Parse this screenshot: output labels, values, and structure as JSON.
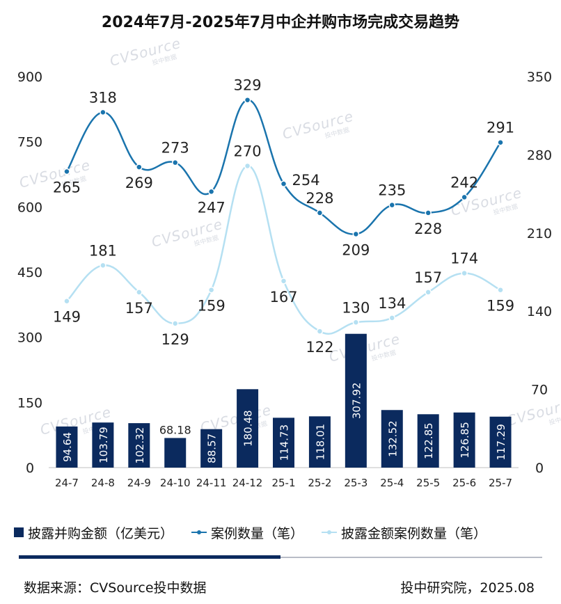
{
  "title": "2024年7月-2025年7月中企并购市场完成交易趋势",
  "watermark": "CVSource",
  "watermark_sub": "投中数据",
  "colors": {
    "bar": "#0b2a5e",
    "cases_line": "#1a74ad",
    "disclosed_line": "#b5e0f2",
    "bar_label": "#ffffff",
    "watermark": "#d5d9e0"
  },
  "legend": [
    {
      "label": "披露并购金额（亿美元）",
      "kind": "bar"
    },
    {
      "label": "案例数量（笔）",
      "kind": "line-dark"
    },
    {
      "label": "披露金额案例数量（笔）",
      "kind": "line-light"
    }
  ],
  "footer": {
    "source": "数据来源：CVSource投中数据",
    "org_date": "投中研究院，2025.08"
  },
  "chart_data": {
    "type": "bar",
    "categories": [
      "24-7",
      "24-8",
      "24-9",
      "24-10",
      "24-11",
      "24-12",
      "25-1",
      "25-2",
      "25-3",
      "25-4",
      "25-5",
      "25-6",
      "25-7"
    ],
    "y_left": {
      "ticks": [
        "0",
        "150",
        "300",
        "450",
        "600",
        "750",
        "900"
      ],
      "range": [
        0,
        900
      ]
    },
    "y_right": {
      "ticks": [
        "0",
        "70",
        "140",
        "210",
        "280",
        "350"
      ],
      "range": [
        0,
        350
      ]
    },
    "series": [
      {
        "name": "披露并购金额（亿美元）",
        "type": "bar",
        "axis": "left",
        "values": [
          94.64,
          103.79,
          102.32,
          68.18,
          88.57,
          180.48,
          114.73,
          118.01,
          307.92,
          132.52,
          122.85,
          126.85,
          117.29
        ],
        "labels": [
          "94.64",
          "103.79",
          "102.32",
          "68.18",
          "88.57",
          "180.48",
          "114.73",
          "118.01",
          "307.92",
          "132.52",
          "122.85",
          "126.85",
          "117.29"
        ]
      },
      {
        "name": "案例数量（笔）",
        "type": "line",
        "axis": "right",
        "values": [
          265,
          318,
          269,
          273,
          247,
          329,
          254,
          228,
          209,
          235,
          228,
          242,
          291
        ],
        "labels": [
          "265",
          "318",
          "269",
          "273",
          "247",
          "329",
          "254",
          "228",
          "209",
          "235",
          "228",
          "242",
          "291"
        ]
      },
      {
        "name": "披露金额案例数量（笔）",
        "type": "line",
        "axis": "right",
        "values": [
          149,
          181,
          157,
          129,
          159,
          270,
          167,
          122,
          130,
          134,
          157,
          174,
          159
        ],
        "labels": [
          "149",
          "181",
          "157",
          "129",
          "159",
          "270",
          "167",
          "122",
          "130",
          "134",
          "157",
          "174",
          "159"
        ]
      }
    ]
  }
}
